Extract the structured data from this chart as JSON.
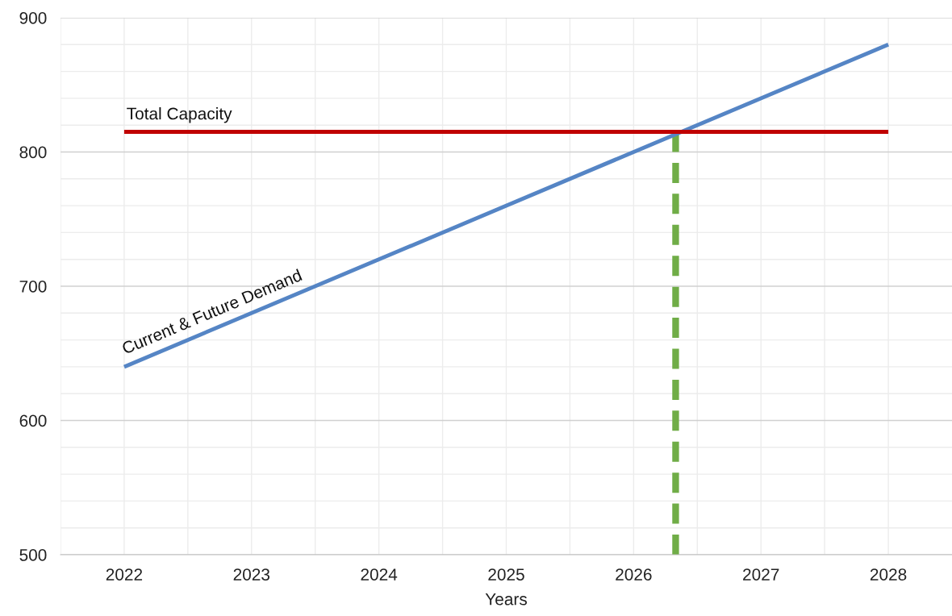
{
  "chart_data": {
    "type": "line",
    "xlabel": "Years",
    "series": [
      {
        "name": "Current & Future Demand",
        "color": "#5585c5",
        "x": [
          2022,
          2028
        ],
        "values": [
          640,
          880
        ],
        "line_style": "solid"
      },
      {
        "name": "Total Capacity",
        "color": "#c00000",
        "x": [
          2022,
          2028
        ],
        "values": [
          815,
          815
        ],
        "line_style": "solid"
      },
      {
        "color": "#70ad47",
        "x": [
          2026.33,
          2026.33
        ],
        "values": [
          500,
          815
        ],
        "line_style": "dashed"
      }
    ],
    "xlim": [
      2021.5,
      2028.5
    ],
    "xticks": [
      2022,
      2023,
      2024,
      2025,
      2026,
      2027,
      2028
    ],
    "ylim": [
      500,
      900
    ],
    "yticks": [
      500,
      600,
      700,
      800,
      900
    ],
    "grid": true,
    "legend": false,
    "marker": "none"
  }
}
